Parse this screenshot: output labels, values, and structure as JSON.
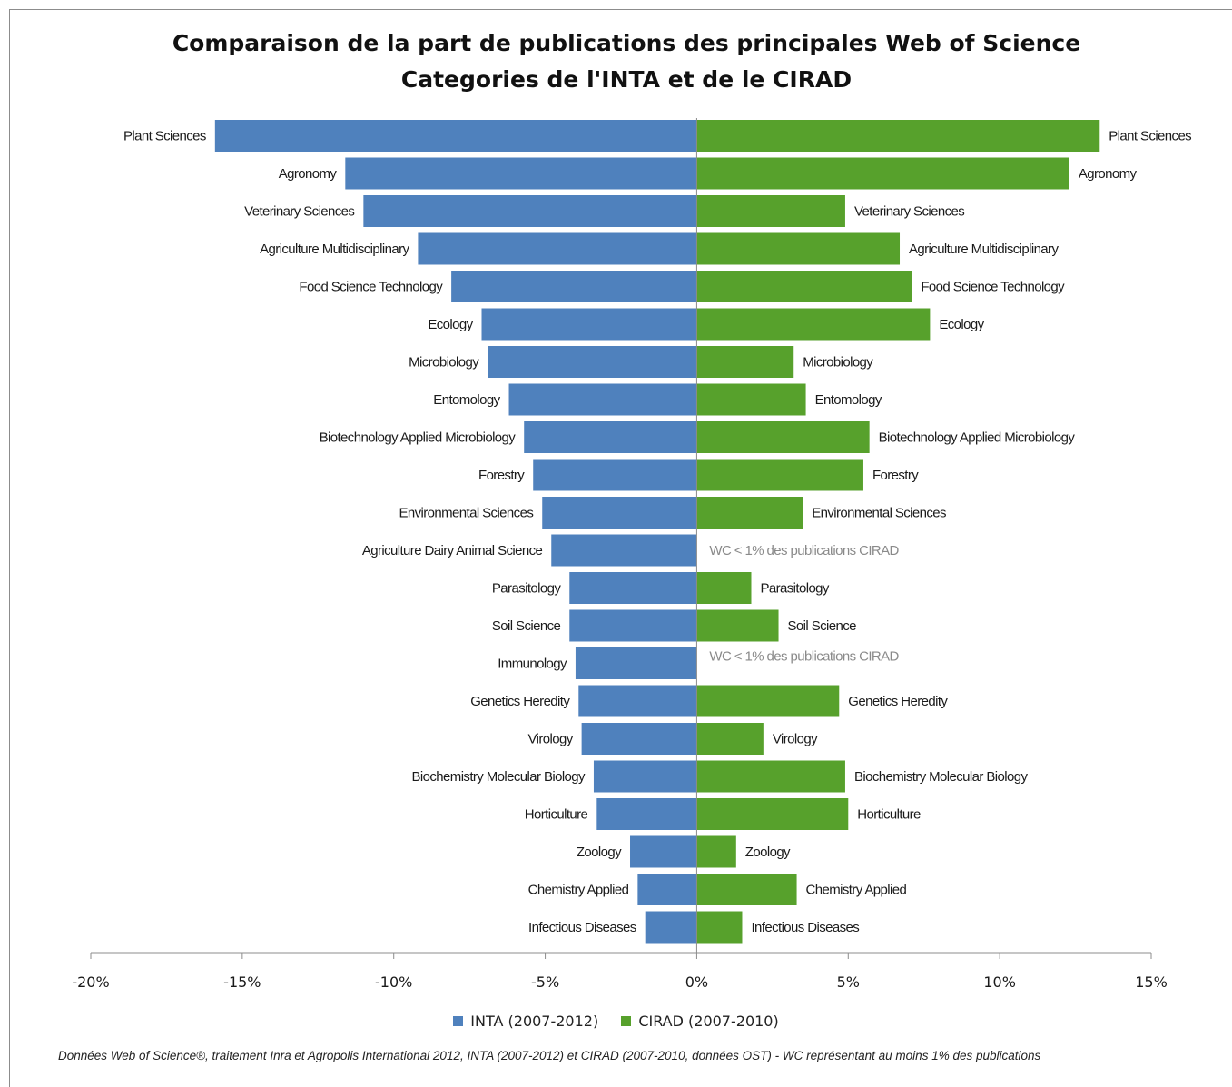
{
  "chart_data": {
    "type": "bar",
    "orientation": "horizontal",
    "title_line1": "Comparaison de la part de publications des principales Web of Science",
    "title_line2": "Categories de l'INTA et de le CIRAD",
    "categories": [
      "Plant Sciences",
      "Agronomy",
      "Veterinary Sciences",
      "Agriculture Multidisciplinary",
      "Food Science Technology",
      "Ecology",
      "Microbiology",
      "Entomology",
      "Biotechnology Applied Microbiology",
      "Forestry",
      "Environmental Sciences",
      "Agriculture Dairy Animal Science",
      "Parasitology",
      "Soil Science",
      "Immunology",
      "Genetics Heredity",
      "Virology",
      "Biochemistry Molecular Biology",
      "Horticulture",
      "Zoology",
      "Chemistry Applied",
      "Infectious Diseases"
    ],
    "series": [
      {
        "name": "INTA (2007-2012)",
        "color": "#4f81bd",
        "values": [
          -15.9,
          -11.6,
          -11.0,
          -9.2,
          -8.1,
          -7.1,
          -6.9,
          -6.2,
          -5.7,
          -5.4,
          -5.1,
          -4.8,
          -4.2,
          -4.2,
          -4.0,
          -3.9,
          -3.8,
          -3.4,
          -3.3,
          -2.2,
          -1.95,
          -1.7
        ]
      },
      {
        "name": "CIRAD (2007-2010)",
        "color": "#57a12c",
        "values": [
          13.3,
          12.3,
          4.9,
          6.7,
          7.1,
          7.7,
          3.2,
          3.6,
          5.7,
          5.5,
          3.5,
          null,
          1.8,
          2.7,
          null,
          4.7,
          2.2,
          4.9,
          5.0,
          1.3,
          3.3,
          1.5
        ]
      }
    ],
    "missing_note": "WC < 1% des publications CIRAD",
    "xlim": [
      -20,
      15
    ],
    "xticks": [
      -20,
      -15,
      -10,
      -5,
      0,
      5,
      10,
      15
    ],
    "xtick_labels": [
      "-20%",
      "-15%",
      "-10%",
      "-5%",
      "0%",
      "5%",
      "10%",
      "15%"
    ],
    "grid": false,
    "legend_position": "bottom",
    "source": "Données Web of Science®, traitement Inra et Agropolis International 2012, INTA (2007-2012)  et CIRAD (2007-2010, données OST) - WC représentant au moins 1% des publications"
  }
}
